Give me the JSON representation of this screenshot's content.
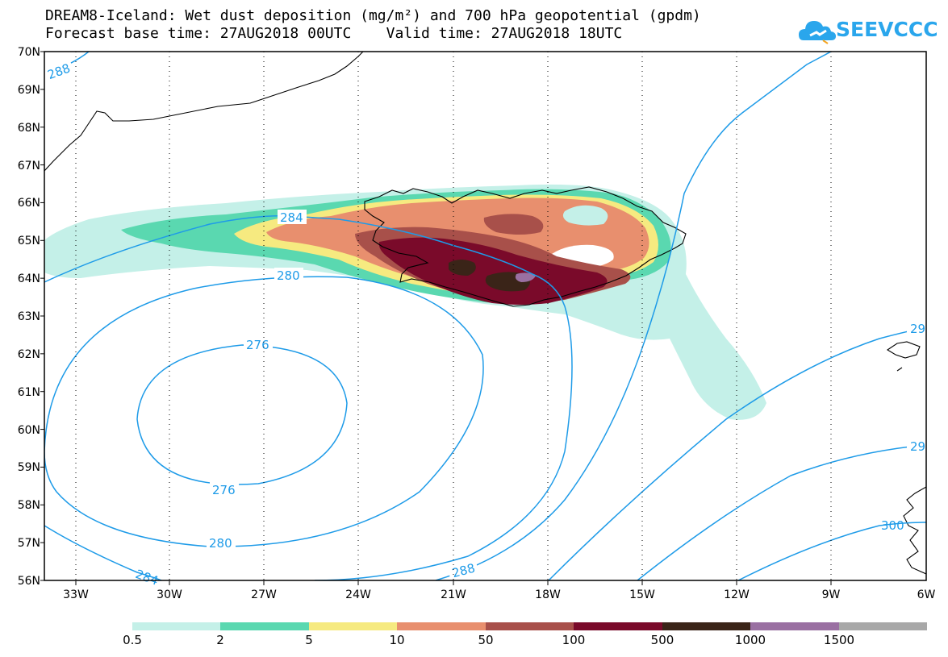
{
  "header": {
    "title_line1": "DREAM8-Iceland: Wet dust deposition (mg/m²) and 700 hPa geopotential (gpdm)",
    "title_line2": "Forecast base time: 27AUG2018 00UTC    Valid time: 27AUG2018 18UTC",
    "logo_text": "SEEVCCC",
    "logo_icon": "cloud-icon"
  },
  "map": {
    "lat_labels": [
      "70N",
      "69N",
      "68N",
      "67N",
      "66N",
      "65N",
      "64N",
      "63N",
      "62N",
      "61N",
      "60N",
      "59N",
      "58N",
      "57N",
      "56N"
    ],
    "lon_labels": [
      "33W",
      "30W",
      "27W",
      "24W",
      "21W",
      "18W",
      "15W",
      "12W",
      "9W",
      "6W"
    ],
    "contour_color": "#1e9be8",
    "contour_labels": [
      "288",
      "284",
      "280",
      "276",
      "276",
      "280",
      "284",
      "288",
      "29",
      "29",
      "300"
    ]
  },
  "legend": {
    "labels": [
      "0.5",
      "2",
      "5",
      "10",
      "50",
      "100",
      "500",
      "1000",
      "1500"
    ],
    "colors": [
      "#c4f0e8",
      "#5ad8b0",
      "#f6ea80",
      "#e88f6e",
      "#a8504a",
      "#7a0a2a",
      "#3a2418",
      "#9a70a2",
      "#a8a8a8"
    ]
  }
}
